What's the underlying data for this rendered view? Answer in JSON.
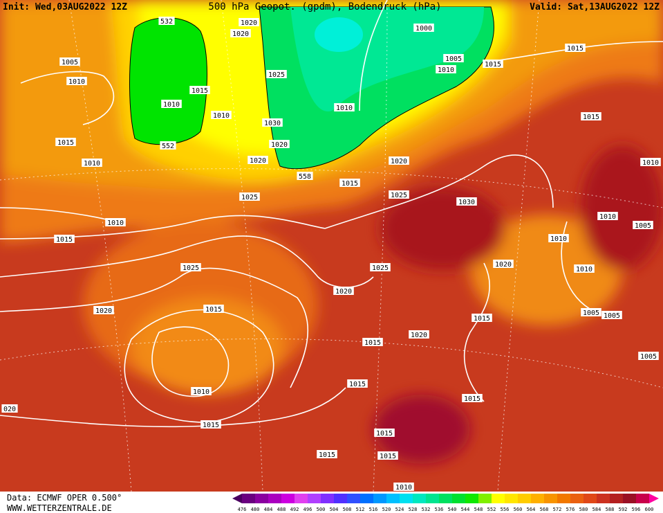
{
  "header": {
    "init": "Init: Wed,03AUG2022 12Z",
    "title": "500 hPa Geopot. (gpdm), Bodendruck (hPa)",
    "valid": "Valid: Sat,13AUG2022 12Z"
  },
  "isobars": {
    "labels": [
      "532",
      "1020",
      "1020",
      "1000",
      "1015",
      "1005",
      "1005",
      "1015",
      "1010",
      "1025",
      "1010",
      "1015",
      "1010",
      "1010",
      "1010",
      "1015",
      "1030",
      "552",
      "1020",
      "1015",
      "1020",
      "1010",
      "1020",
      "1010",
      "558",
      "1015",
      "1025",
      "1025",
      "1030",
      "1010",
      "1010",
      "1005",
      "1015",
      "1010",
      "1020",
      "1025",
      "1025",
      "1010",
      "1020",
      "1015",
      "1020",
      "1005",
      "1005",
      "1015",
      "1020",
      "1015",
      "1005",
      "1015",
      "1010",
      "1015",
      "020",
      "1015",
      "1015",
      "1015",
      "1015",
      "1010"
    ]
  },
  "colorbar": {
    "labels": [
      476,
      480,
      484,
      488,
      492,
      496,
      500,
      504,
      508,
      512,
      516,
      520,
      524,
      528,
      532,
      536,
      540,
      544,
      548,
      552,
      556,
      560,
      564,
      568,
      572,
      576,
      580,
      584,
      588,
      592,
      596,
      600
    ],
    "colors": [
      "#4a0060",
      "#6a0080",
      "#8a00a0",
      "#aa00c0",
      "#cc00e0",
      "#e040f0",
      "#b040ff",
      "#8030ff",
      "#5030ff",
      "#3050ff",
      "#0070ff",
      "#0098ff",
      "#00c0ff",
      "#00e0f0",
      "#00e8c0",
      "#00e490",
      "#00e060",
      "#00e030",
      "#10e800",
      "#80f000",
      "#ffff00",
      "#ffe600",
      "#ffcc00",
      "#ffb000",
      "#f89400",
      "#f27800",
      "#ea6010",
      "#e04818",
      "#cc3220",
      "#b42020",
      "#9a1024",
      "#c8004a",
      "#ff00a0"
    ]
  },
  "footer": {
    "source": "Data: ECMWF OPER 0.500°",
    "website": "WWW.WETTERZENTRALE.DE"
  }
}
